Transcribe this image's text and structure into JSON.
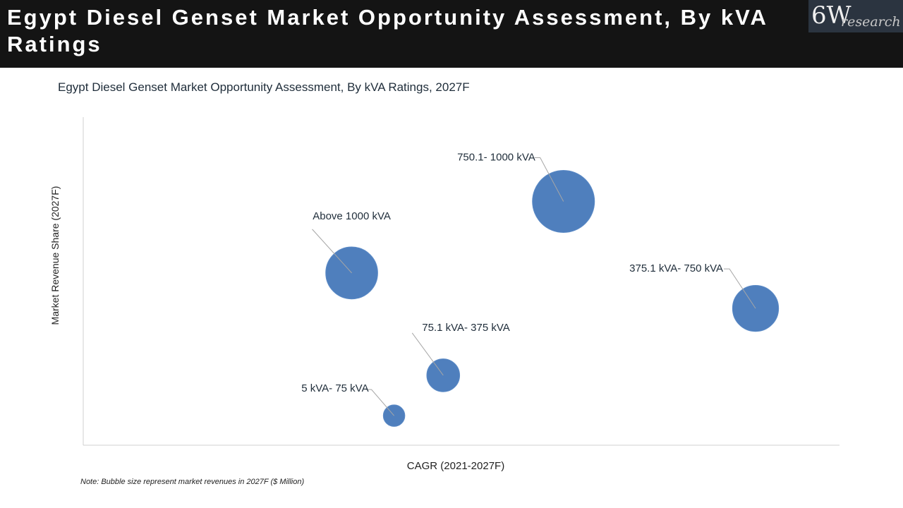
{
  "header": {
    "title": "Egypt Diesel Genset Market Opportunity Assessment, By kVA Ratings",
    "logo_mark": "6W",
    "logo_sub": "research"
  },
  "chart_data": {
    "type": "scatter",
    "subtype": "bubble",
    "title": "Egypt Diesel Genset Market Opportunity Assessment, By kVA Ratings, 2027F",
    "xlabel": "CAGR (2021-2027F)",
    "ylabel": "Market Revenue Share (2027F)",
    "xlim": [
      0,
      100
    ],
    "ylim": [
      0,
      100
    ],
    "grid": false,
    "bubble_color": "#4f7fbd",
    "series": [
      {
        "name": "750.1- 1000 kVA",
        "x": 63.5,
        "y": 74.3,
        "size": 100
      },
      {
        "name": "Above 1000 kVA",
        "x": 35.5,
        "y": 52.5,
        "size": 70
      },
      {
        "name": "375.1 kVA- 750 kVA",
        "x": 88.9,
        "y": 41.7,
        "size": 55
      },
      {
        "name": "75.1 kVA- 375 kVA",
        "x": 47.6,
        "y": 21.3,
        "size": 28
      },
      {
        "name": "5 kVA- 75 kVA",
        "x": 41.1,
        "y": 9.0,
        "size": 12
      }
    ]
  },
  "note": "Note: Bubble size represent market revenues in 2027F ($ Million)"
}
